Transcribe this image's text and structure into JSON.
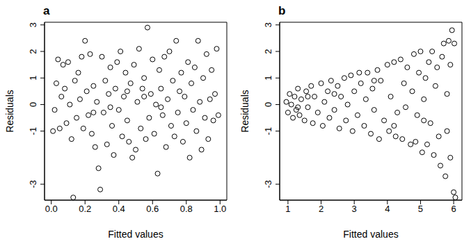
{
  "chart_data": [
    {
      "type": "scatter",
      "title": "a",
      "x_label": "Fitted values",
      "y_label": "Residuals",
      "color": "#000000",
      "marker": "circle-open",
      "xlim": [
        -0.04,
        1.04
      ],
      "ylim": [
        -3.6,
        3.1
      ],
      "xticks": [
        {
          "value": 0,
          "label": "0.0"
        },
        {
          "value": 0.2,
          "label": "0.2"
        },
        {
          "value": 0.4,
          "label": "0.4"
        },
        {
          "value": 0.6,
          "label": "0.6"
        },
        {
          "value": 0.8,
          "label": "0.8"
        },
        {
          "value": 1,
          "label": "1.0"
        }
      ],
      "yticks": [
        -3,
        -1,
        0,
        1,
        2,
        3
      ],
      "x": [
        0.01,
        0.02,
        0.03,
        0.04,
        0.05,
        0.06,
        0.07,
        0.08,
        0.09,
        0.1,
        0.11,
        0.12,
        0.13,
        0.14,
        0.15,
        0.16,
        0.17,
        0.18,
        0.19,
        0.2,
        0.21,
        0.22,
        0.23,
        0.24,
        0.25,
        0.26,
        0.27,
        0.28,
        0.29,
        0.3,
        0.31,
        0.32,
        0.33,
        0.34,
        0.35,
        0.36,
        0.37,
        0.38,
        0.39,
        0.4,
        0.41,
        0.42,
        0.43,
        0.44,
        0.45,
        0.46,
        0.47,
        0.48,
        0.49,
        0.5,
        0.51,
        0.52,
        0.53,
        0.54,
        0.55,
        0.56,
        0.57,
        0.58,
        0.59,
        0.6,
        0.61,
        0.62,
        0.63,
        0.64,
        0.65,
        0.66,
        0.67,
        0.68,
        0.69,
        0.7,
        0.71,
        0.72,
        0.73,
        0.74,
        0.75,
        0.76,
        0.77,
        0.78,
        0.79,
        0.8,
        0.81,
        0.82,
        0.83,
        0.84,
        0.85,
        0.86,
        0.87,
        0.88,
        0.89,
        0.9,
        0.91,
        0.92,
        0.93,
        0.94,
        0.95,
        0.96,
        0.97,
        0.98,
        0.99,
        0.35,
        0.55,
        0.45,
        0.25,
        0.65
      ],
      "values": [
        -1.0,
        -0.2,
        0.8,
        1.7,
        -0.9,
        0.3,
        1.5,
        0.6,
        -0.7,
        1.6,
        0.0,
        -1.3,
        -3.5,
        0.9,
        -0.5,
        1.2,
        0.2,
        1.8,
        -0.9,
        2.4,
        0.5,
        -0.4,
        1.9,
        -1.1,
        0.7,
        -1.6,
        0.1,
        -2.4,
        -3.2,
        1.8,
        -0.3,
        0.9,
        -1.5,
        0.4,
        1.4,
        -0.8,
        -1.9,
        0.6,
        1.6,
        -0.2,
        2.0,
        -1.2,
        0.3,
        1.2,
        -0.6,
        -1.4,
        0.8,
        -2.0,
        1.5,
        -1.7,
        0.1,
        2.1,
        -0.9,
        0.6,
        1.0,
        -1.3,
        2.9,
        -0.5,
        0.4,
        1.7,
        -1.1,
        0.0,
        -2.6,
        1.3,
        0.6,
        -0.4,
        1.8,
        -1.6,
        0.2,
        2.0,
        -0.8,
        0.9,
        -1.2,
        2.4,
        -0.3,
        0.5,
        1.2,
        -1.4,
        0.3,
        -0.7,
        1.6,
        -2.0,
        0.8,
        -0.2,
        1.4,
        -1.0,
        2.4,
        0.1,
        -1.7,
        1.0,
        -0.5,
        1.9,
        -1.3,
        0.2,
        1.3,
        -0.6,
        0.4,
        2.1,
        -0.4,
        -0.1,
        0.3,
        0.5,
        -0.3,
        -0.1
      ]
    },
    {
      "type": "scatter",
      "title": "b",
      "x_label": "Fitted values",
      "y_label": "Residuals",
      "color": "#000000",
      "marker": "circle-open",
      "xlim": [
        0.75,
        6.25
      ],
      "ylim": [
        -3.6,
        3.1
      ],
      "xticks": [
        1,
        2,
        3,
        4,
        5,
        6
      ],
      "yticks": [
        -3,
        -1,
        0,
        1,
        2,
        3
      ],
      "x": [
        0.95,
        1.0,
        1.05,
        1.1,
        1.15,
        1.2,
        1.25,
        1.3,
        1.35,
        1.4,
        1.5,
        1.55,
        1.6,
        1.7,
        1.75,
        1.8,
        1.9,
        2.0,
        2.05,
        2.1,
        2.2,
        2.25,
        2.3,
        2.4,
        2.5,
        2.55,
        2.6,
        2.7,
        2.75,
        2.8,
        2.9,
        2.95,
        3.0,
        3.1,
        3.15,
        3.2,
        3.3,
        3.35,
        3.4,
        3.5,
        3.55,
        3.6,
        3.7,
        3.75,
        3.8,
        3.9,
        4.0,
        4.05,
        4.1,
        4.2,
        4.25,
        4.3,
        4.4,
        4.45,
        4.5,
        4.55,
        4.6,
        4.7,
        4.75,
        4.8,
        4.85,
        4.9,
        4.95,
        5.0,
        5.05,
        5.1,
        5.15,
        5.2,
        5.25,
        5.3,
        5.35,
        5.4,
        5.45,
        5.5,
        5.55,
        5.6,
        5.65,
        5.7,
        5.75,
        5.8,
        5.85,
        5.9,
        5.95,
        6.0,
        6.02,
        6.05,
        5.9,
        5.8,
        4.2,
        3.6,
        2.4,
        1.6,
        1.3,
        5.1
      ],
      "values": [
        0.1,
        -0.3,
        0.4,
        0.0,
        -0.5,
        0.3,
        -0.2,
        0.6,
        -0.4,
        0.2,
        -0.6,
        0.5,
        -0.1,
        0.7,
        -0.7,
        0.3,
        -0.3,
        0.8,
        -0.8,
        0.1,
        0.5,
        -0.5,
        0.9,
        -0.2,
        0.7,
        -0.9,
        0.3,
        1.0,
        -0.6,
        0.0,
        1.1,
        -1.0,
        0.5,
        -0.4,
        1.2,
        0.8,
        -0.8,
        0.2,
        1.2,
        -1.1,
        0.6,
        -0.2,
        1.3,
        -1.3,
        0.9,
        -0.6,
        1.5,
        -1.0,
        0.3,
        1.6,
        -1.2,
        -0.3,
        1.7,
        -1.3,
        0.8,
        -0.1,
        1.4,
        -1.5,
        0.5,
        1.9,
        -1.4,
        -0.4,
        1.2,
        2.0,
        -1.8,
        0.2,
        1.0,
        -1.5,
        1.6,
        -0.7,
        2.0,
        -1.9,
        0.7,
        1.4,
        -1.2,
        -2.3,
        1.8,
        2.3,
        -2.7,
        0.4,
        2.4,
        -2.0,
        2.8,
        -3.3,
        2.3,
        -3.5,
        1.5,
        -1.0,
        -0.8,
        0.9,
        0.4,
        0.3,
        -0.1,
        -0.6
      ]
    }
  ]
}
